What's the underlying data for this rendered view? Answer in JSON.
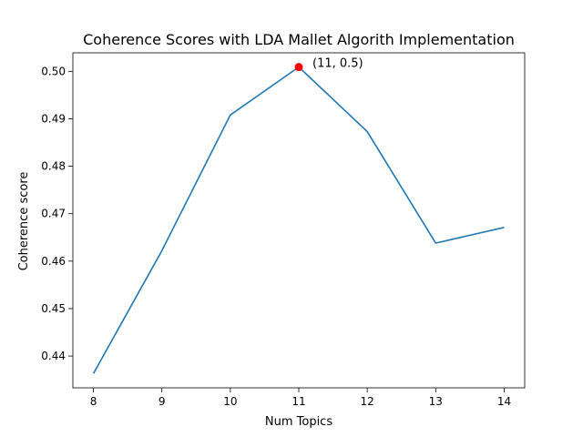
{
  "chart_data": {
    "type": "line",
    "title": "Coherence Scores with LDA Mallet Algorith Implementation",
    "xlabel": "Num Topics",
    "ylabel": "Coherence score",
    "x": [
      8,
      9,
      10,
      11,
      12,
      13,
      14
    ],
    "series": [
      {
        "values": [
          0.4363,
          0.4622,
          0.4908,
          0.5009,
          0.4873,
          0.4638,
          0.4671
        ],
        "color": "#1f77b4"
      }
    ],
    "x_ticks": [
      8,
      9,
      10,
      11,
      12,
      13,
      14
    ],
    "y_ticks": [
      0.44,
      0.45,
      0.46,
      0.47,
      0.48,
      0.49,
      0.5
    ],
    "y_tick_labels": [
      "0.44",
      "0.45",
      "0.46",
      "0.47",
      "0.48",
      "0.49",
      "0.50"
    ],
    "xlim": [
      7.7,
      14.3
    ],
    "ylim": [
      0.4333,
      0.5039
    ],
    "grid": false,
    "highlight": {
      "x": 11,
      "y": 0.5009,
      "color": "#ff0000",
      "label": "(11, 0.5)"
    }
  }
}
